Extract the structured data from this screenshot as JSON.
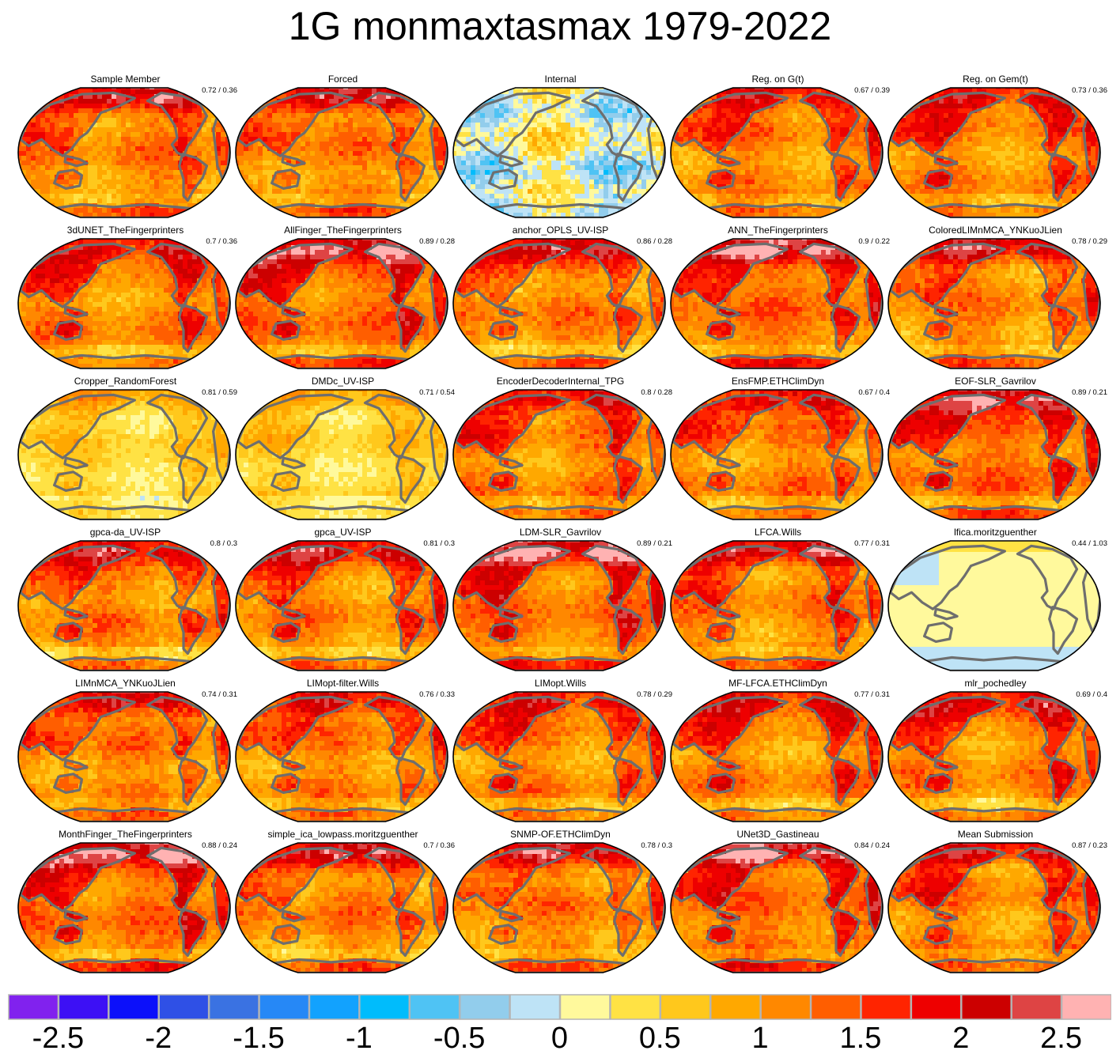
{
  "chart_data": {
    "type": "heatmap",
    "title": "1G monmaxtasmax 1979-2022",
    "description": "Grid of 30 global map panels (Robinson-like projection) showing max temperature trend patterns; each panel annotated with two scores",
    "panels": [
      {
        "name": "Sample Member",
        "stats": "0.72 / 0.36",
        "regime": "warm"
      },
      {
        "name": "Forced",
        "stats": "",
        "regime": "warm"
      },
      {
        "name": "Internal",
        "stats": "",
        "regime": "internal"
      },
      {
        "name": "Reg. on G(t)",
        "stats": "0.67 / 0.39",
        "regime": "warm"
      },
      {
        "name": "Reg. on Gem(t)",
        "stats": "0.73 / 0.36",
        "regime": "warm"
      },
      {
        "name": "3dUNET_TheFingerprinters",
        "stats": "0.7 / 0.36",
        "regime": "warm"
      },
      {
        "name": "AllFinger_TheFingerprinters",
        "stats": "0.89 / 0.28",
        "regime": "hot"
      },
      {
        "name": "anchor_OPLS_UV-ISP",
        "stats": "0.86 / 0.28",
        "regime": "warm"
      },
      {
        "name": "ANN_TheFingerprinters",
        "stats": "0.9 / 0.22",
        "regime": "hot"
      },
      {
        "name": "ColoredLIMnMCA_YNKuoJLien",
        "stats": "0.78 / 0.29",
        "regime": "warm"
      },
      {
        "name": "Cropper_RandomForest",
        "stats": "0.81 / 0.59",
        "regime": "mild"
      },
      {
        "name": "DMDc_UV-ISP",
        "stats": "0.71 / 0.54",
        "regime": "mild"
      },
      {
        "name": "EncoderDecoderInternal_TPG",
        "stats": "0.8 / 0.28",
        "regime": "warm"
      },
      {
        "name": "EnsFMP.ETHClimDyn",
        "stats": "0.67 / 0.4",
        "regime": "warm"
      },
      {
        "name": "EOF-SLR_Gavrilov",
        "stats": "0.89 / 0.21",
        "regime": "hot"
      },
      {
        "name": "gpca-da_UV-ISP",
        "stats": "0.8 / 0.3",
        "regime": "warm"
      },
      {
        "name": "gpca_UV-ISP",
        "stats": "0.81 / 0.3",
        "regime": "warm"
      },
      {
        "name": "LDM-SLR_Gavrilov",
        "stats": "0.89 / 0.21",
        "regime": "hot"
      },
      {
        "name": "LFCA.Wills",
        "stats": "0.77 / 0.31",
        "regime": "warm"
      },
      {
        "name": "lfica.moritzguenther",
        "stats": "0.44 / 1.03",
        "regime": "flat"
      },
      {
        "name": "LIMnMCA_YNKuoJLien",
        "stats": "0.74 / 0.31",
        "regime": "warm"
      },
      {
        "name": "LIMopt-filter.Wills",
        "stats": "0.76 / 0.33",
        "regime": "warm"
      },
      {
        "name": "LIMopt.Wills",
        "stats": "0.78 / 0.29",
        "regime": "warm"
      },
      {
        "name": "MF-LFCA.ETHClimDyn",
        "stats": "0.77 / 0.31",
        "regime": "warm"
      },
      {
        "name": "mlr_pochedley",
        "stats": "0.69 / 0.4",
        "regime": "warm"
      },
      {
        "name": "MonthFinger_TheFingerprinters",
        "stats": "0.88 / 0.24",
        "regime": "hot"
      },
      {
        "name": "simple_ica_lowpass.moritzguenther",
        "stats": "0.7 / 0.36",
        "regime": "warm"
      },
      {
        "name": "SNMP-OF.ETHClimDyn",
        "stats": "0.78 / 0.3",
        "regime": "warm"
      },
      {
        "name": "UNet3D_Gastineau",
        "stats": "0.84 / 0.24",
        "regime": "hot"
      },
      {
        "name": "Mean Submission",
        "stats": "0.87 / 0.23",
        "regime": "warm"
      }
    ],
    "colorbar": {
      "range": [
        -2.75,
        2.75
      ],
      "bin_width": 0.25,
      "tick_labels": [
        "-2.5",
        "-2",
        "-1.5",
        "-1",
        "-0.5",
        "0",
        "0.5",
        "1",
        "1.5",
        "2",
        "2.5"
      ],
      "tick_values": [
        -2.5,
        -2,
        -1.5,
        -1,
        -0.5,
        0,
        0.5,
        1,
        1.5,
        2,
        2.5
      ],
      "colors": [
        "#8122ee",
        "#3d10f5",
        "#0c10fa",
        "#2f50e6",
        "#3a72e2",
        "#2688f6",
        "#12a2fe",
        "#00bcfc",
        "#4fc3f4",
        "#92cdec",
        "#bee3f6",
        "#fff99c",
        "#ffe244",
        "#ffc81c",
        "#ffa800",
        "#ff8800",
        "#ff5e00",
        "#ff2400",
        "#ee0000",
        "#cc0000",
        "#de4444",
        "#ffb2b2"
      ]
    },
    "land_color": "#6e6e6e"
  }
}
